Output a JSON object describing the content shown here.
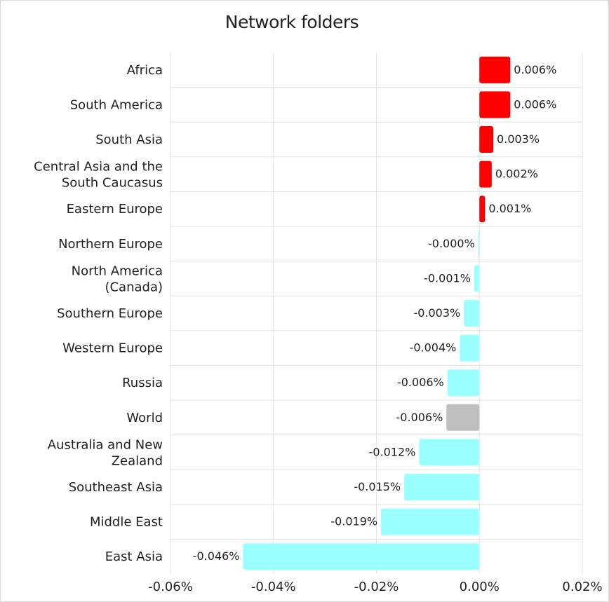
{
  "chart_data": {
    "type": "bar",
    "orientation": "horizontal",
    "title": "Network folders",
    "xlim": [
      -0.06,
      0.02
    ],
    "x_ticks": [
      -0.06,
      -0.04,
      -0.02,
      0.0,
      0.02
    ],
    "x_tick_labels": [
      "-0.06%",
      "-0.04%",
      "-0.02%",
      "0.00%",
      "0.02%"
    ],
    "grid": true,
    "colors": {
      "positive": "#ff0000",
      "negative": "#99ffff",
      "world": "#bfbfbf"
    },
    "categories": [
      [
        "Africa"
      ],
      [
        "South America"
      ],
      [
        "South Asia"
      ],
      [
        "Central Asia and the",
        "South Caucasus"
      ],
      [
        "Eastern Europe"
      ],
      [
        "Northern Europe"
      ],
      [
        "North America",
        "(Canada)"
      ],
      [
        "Southern Europe"
      ],
      [
        "Western Europe"
      ],
      [
        "Russia"
      ],
      [
        "World"
      ],
      [
        "Australia and New",
        "Zealand"
      ],
      [
        "Southeast Asia"
      ],
      [
        "Middle East"
      ],
      [
        "East Asia"
      ]
    ],
    "values": [
      0.006,
      0.006,
      0.0027,
      0.0024,
      0.0011,
      -0.0002,
      -0.001,
      -0.003,
      -0.0038,
      -0.0062,
      -0.0064,
      -0.0117,
      -0.0146,
      -0.0191,
      -0.0459
    ],
    "value_labels": [
      "0.006%",
      "0.006%",
      "0.003%",
      "0.002%",
      "0.001%",
      "-0.000%",
      "-0.001%",
      "-0.003%",
      "-0.004%",
      "-0.006%",
      "-0.006%",
      "-0.012%",
      "-0.015%",
      "-0.019%",
      "-0.046%"
    ],
    "highlight": "World"
  }
}
